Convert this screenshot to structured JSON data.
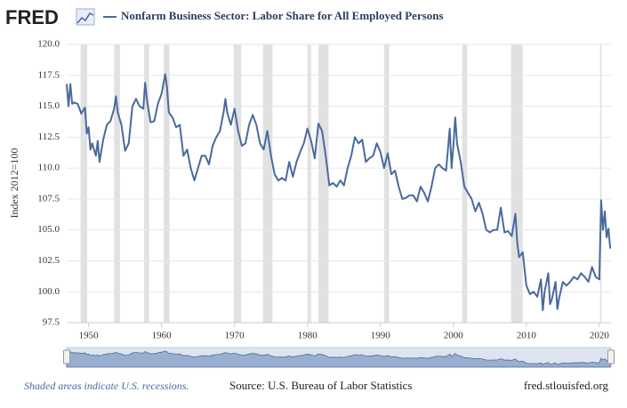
{
  "logo": "FRED",
  "footer": {
    "note": "Shaded areas indicate U.S. recessions.",
    "source": "Source: U.S. Bureau of Labor Statistics",
    "site": "fred.stlouisfed.org"
  },
  "chart_data": {
    "type": "line",
    "y_label": "Index 2012=100",
    "x": [
      1947.0,
      1947.25,
      1947.5,
      1947.75,
      1948,
      1948.5,
      1949,
      1949.5,
      1949.75,
      1950,
      1950.25,
      1950.5,
      1951,
      1951.25,
      1951.5,
      1952,
      1952.5,
      1953,
      1953.5,
      1953.75,
      1954,
      1954.5,
      1955,
      1955.5,
      1956,
      1956.5,
      1957,
      1957.5,
      1957.75,
      1958,
      1958.5,
      1959,
      1959.5,
      1960,
      1960.5,
      1960.75,
      1961,
      1961.5,
      1962,
      1962.5,
      1963,
      1963.5,
      1964,
      1964.5,
      1965,
      1965.5,
      1966,
      1966.5,
      1967,
      1967.5,
      1968,
      1968.5,
      1968.75,
      1969,
      1969.5,
      1970,
      1970.5,
      1971,
      1971.5,
      1972,
      1972.5,
      1973,
      1973.5,
      1974,
      1974.5,
      1975,
      1975.5,
      1976,
      1976.5,
      1977,
      1977.5,
      1978,
      1978.5,
      1979,
      1979.5,
      1980,
      1980.5,
      1981,
      1981.5,
      1982,
      1982.5,
      1983,
      1983.5,
      1984,
      1984.5,
      1985,
      1985.5,
      1986,
      1986.5,
      1987,
      1987.5,
      1988,
      1988.5,
      1989,
      1989.5,
      1990,
      1990.5,
      1991,
      1991.5,
      1992,
      1992.5,
      1993,
      1993.5,
      1994,
      1994.5,
      1995,
      1995.5,
      1996,
      1996.5,
      1997,
      1997.5,
      1998,
      1998.5,
      1999,
      1999.5,
      1999.75,
      2000,
      2000.25,
      2000.5,
      2001,
      2001.5,
      2002,
      2002.5,
      2003,
      2003.5,
      2004,
      2004.5,
      2005,
      2005.5,
      2006,
      2006.5,
      2007,
      2007.5,
      2008,
      2008.5,
      2008.75,
      2009,
      2009.5,
      2010,
      2010.5,
      2011,
      2011.5,
      2012,
      2012.25,
      2012.5,
      2013,
      2013.25,
      2013.5,
      2014,
      2014.25,
      2014.5,
      2015,
      2015.5,
      2016,
      2016.5,
      2017,
      2017.5,
      2018,
      2018.5,
      2019,
      2019.5,
      2020,
      2020.25,
      2020.5,
      2020.75,
      2021,
      2021.25,
      2021.5
    ],
    "series": [
      {
        "name": "Nonfarm Business Sector: Labor Share for All Employed Persons",
        "color": "#4a6a9c",
        "values": [
          116.8,
          115.0,
          116.8,
          115.2,
          115.3,
          115.2,
          114.4,
          114.9,
          112.8,
          113.3,
          111.5,
          112.0,
          111.0,
          112.2,
          110.5,
          112.3,
          113.5,
          113.8,
          114.8,
          115.8,
          114.5,
          113.5,
          111.4,
          112.0,
          115.0,
          115.6,
          115.0,
          114.8,
          116.9,
          115.5,
          113.7,
          113.8,
          115.2,
          116.0,
          117.6,
          116.5,
          114.5,
          114.1,
          113.3,
          113.5,
          111.0,
          111.5,
          110.0,
          109.0,
          110.0,
          111.0,
          111.0,
          110.3,
          111.8,
          112.5,
          113.0,
          114.5,
          115.6,
          114.5,
          113.5,
          114.8,
          113.0,
          111.8,
          112.0,
          113.5,
          114.3,
          113.5,
          112.0,
          111.5,
          113.0,
          111.0,
          109.5,
          109.0,
          109.2,
          109.0,
          110.5,
          109.3,
          110.5,
          111.3,
          112.0,
          113.2,
          112.2,
          110.8,
          113.6,
          113.0,
          111.0,
          108.6,
          108.8,
          108.5,
          109.0,
          108.6,
          110.0,
          111.0,
          112.5,
          112.0,
          112.3,
          110.5,
          110.8,
          111.0,
          112.0,
          111.3,
          110.0,
          111.2,
          109.5,
          109.8,
          108.5,
          107.5,
          107.6,
          107.8,
          107.8,
          107.3,
          108.5,
          108.0,
          107.3,
          108.5,
          110.0,
          110.3,
          110.0,
          109.8,
          113.2,
          110.0,
          111.8,
          114.1,
          112.0,
          110.5,
          108.5,
          108.0,
          107.5,
          106.5,
          107.2,
          106.3,
          105.0,
          104.8,
          105.0,
          105.0,
          106.8,
          104.8,
          104.9,
          104.5,
          106.3,
          104.0,
          102.8,
          103.2,
          100.5,
          99.8,
          100.0,
          99.6,
          101.0,
          98.5,
          100.0,
          101.5,
          99.0,
          99.4,
          100.8,
          98.6,
          99.5,
          100.8,
          100.5,
          100.8,
          101.2,
          101.0,
          101.5,
          101.2,
          100.8,
          102.0,
          101.2,
          101.0,
          107.4,
          105.0,
          106.5,
          104.4,
          105.1,
          103.5
        ]
      }
    ],
    "recessions": [
      [
        1948.9,
        1949.8
      ],
      [
        1953.5,
        1954.3
      ],
      [
        1957.6,
        1958.3
      ],
      [
        1960.3,
        1961.1
      ],
      [
        1969.9,
        1970.9
      ],
      [
        1973.9,
        1975.2
      ],
      [
        1980.0,
        1980.5
      ],
      [
        1981.5,
        1982.9
      ],
      [
        1990.5,
        1991.2
      ],
      [
        2001.2,
        2001.9
      ],
      [
        2007.9,
        2009.5
      ],
      [
        2020.1,
        2020.3
      ]
    ],
    "recession_color": "#e1e1e1",
    "xlim": [
      1947,
      2021.6
    ],
    "ylim": [
      97.5,
      120
    ],
    "xticks": [
      1950,
      1960,
      1970,
      1980,
      1990,
      2000,
      2010,
      2020
    ],
    "yticks": [
      {
        "value": 97.5,
        "label": "97.5"
      },
      {
        "value": 100,
        "label": "100.0"
      },
      {
        "value": 102.5,
        "label": "102.5"
      },
      {
        "value": 105,
        "label": "105.0"
      },
      {
        "value": 107.5,
        "label": "107.5"
      },
      {
        "value": 110,
        "label": "110.0"
      },
      {
        "value": 112.5,
        "label": "112.5"
      },
      {
        "value": 115,
        "label": "115.0"
      },
      {
        "value": 117.5,
        "label": "117.5"
      },
      {
        "value": 120,
        "label": "120.0"
      }
    ],
    "grid": true
  }
}
